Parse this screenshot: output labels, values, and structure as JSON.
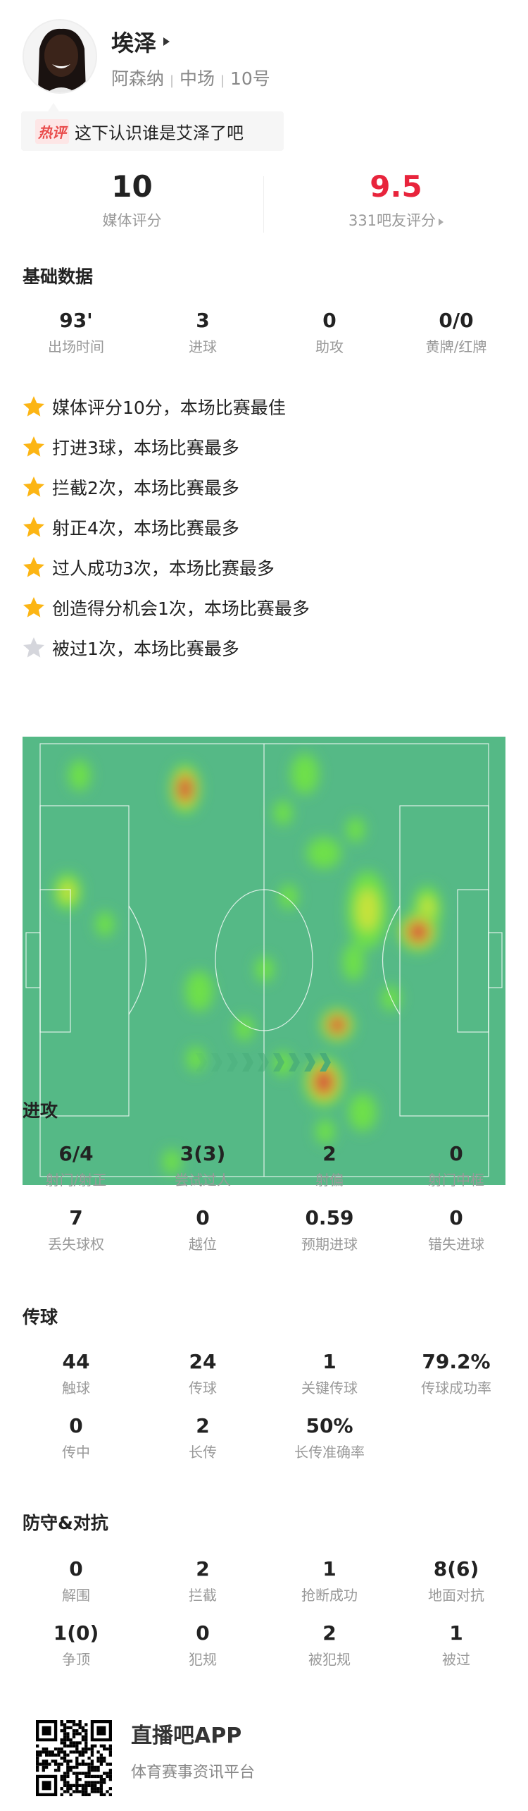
{
  "player": {
    "name": "埃泽",
    "team": "阿森纳",
    "position": "中场",
    "number": "10号",
    "sep": "|"
  },
  "hot_comment": {
    "tag": "热评",
    "text": "这下认识谁是艾泽了吧"
  },
  "ratings": {
    "media_value": "10",
    "media_label": "媒体评分",
    "fan_value": "9.5",
    "fan_label": "331吧友评分",
    "fan_color": "#e8243c"
  },
  "basic": {
    "title": "基础数据",
    "stats": [
      {
        "value": "93'",
        "label": "出场时间"
      },
      {
        "value": "3",
        "label": "进球"
      },
      {
        "value": "0",
        "label": "助攻"
      },
      {
        "value": "0/0",
        "label": "黄牌/红牌"
      }
    ]
  },
  "highlights": [
    {
      "text": "媒体评分10分，本场比赛最佳",
      "icon": "star-gold"
    },
    {
      "text": "打进3球，本场比赛最多",
      "icon": "star-gold"
    },
    {
      "text": "拦截2次，本场比赛最多",
      "icon": "star-gold"
    },
    {
      "text": "射正4次，本场比赛最多",
      "icon": "star-gold"
    },
    {
      "text": "过人成功3次，本场比赛最多",
      "icon": "star-gold"
    },
    {
      "text": "创造得分机会1次，本场比赛最多",
      "icon": "star-gold"
    },
    {
      "text": "被过1次，本场比赛最多",
      "icon": "star-gray"
    }
  ],
  "colors": {
    "pitch": "#55b986",
    "star_gold": "#fcb514",
    "star_gray": "#d5d6dc"
  },
  "attack": {
    "title": "进攻",
    "stats": [
      {
        "value": "6/4",
        "label": "射门/射正"
      },
      {
        "value": "3(3)",
        "label": "尝试过人"
      },
      {
        "value": "2",
        "label": "射偏"
      },
      {
        "value": "0",
        "label": "射门中框"
      },
      {
        "value": "7",
        "label": "丢失球权"
      },
      {
        "value": "0",
        "label": "越位"
      },
      {
        "value": "0.59",
        "label": "预期进球"
      },
      {
        "value": "0",
        "label": "错失进球"
      }
    ]
  },
  "passing": {
    "title": "传球",
    "stats": [
      {
        "value": "44",
        "label": "触球"
      },
      {
        "value": "24",
        "label": "传球"
      },
      {
        "value": "1",
        "label": "关键传球"
      },
      {
        "value": "79.2%",
        "label": "传球成功率"
      },
      {
        "value": "0",
        "label": "传中"
      },
      {
        "value": "2",
        "label": "长传"
      },
      {
        "value": "50%",
        "label": "长传准确率"
      }
    ]
  },
  "defense": {
    "title": "防守&对抗",
    "stats": [
      {
        "value": "0",
        "label": "解围"
      },
      {
        "value": "2",
        "label": "拦截"
      },
      {
        "value": "1",
        "label": "抢断成功"
      },
      {
        "value": "8(6)",
        "label": "地面对抗"
      },
      {
        "value": "1(0)",
        "label": "争顶"
      },
      {
        "value": "0",
        "label": "犯规"
      },
      {
        "value": "2",
        "label": "被犯规"
      },
      {
        "value": "1",
        "label": "被过"
      }
    ]
  },
  "footer": {
    "app_name": "直播吧APP",
    "slogan": "体育赛事资讯平台"
  }
}
